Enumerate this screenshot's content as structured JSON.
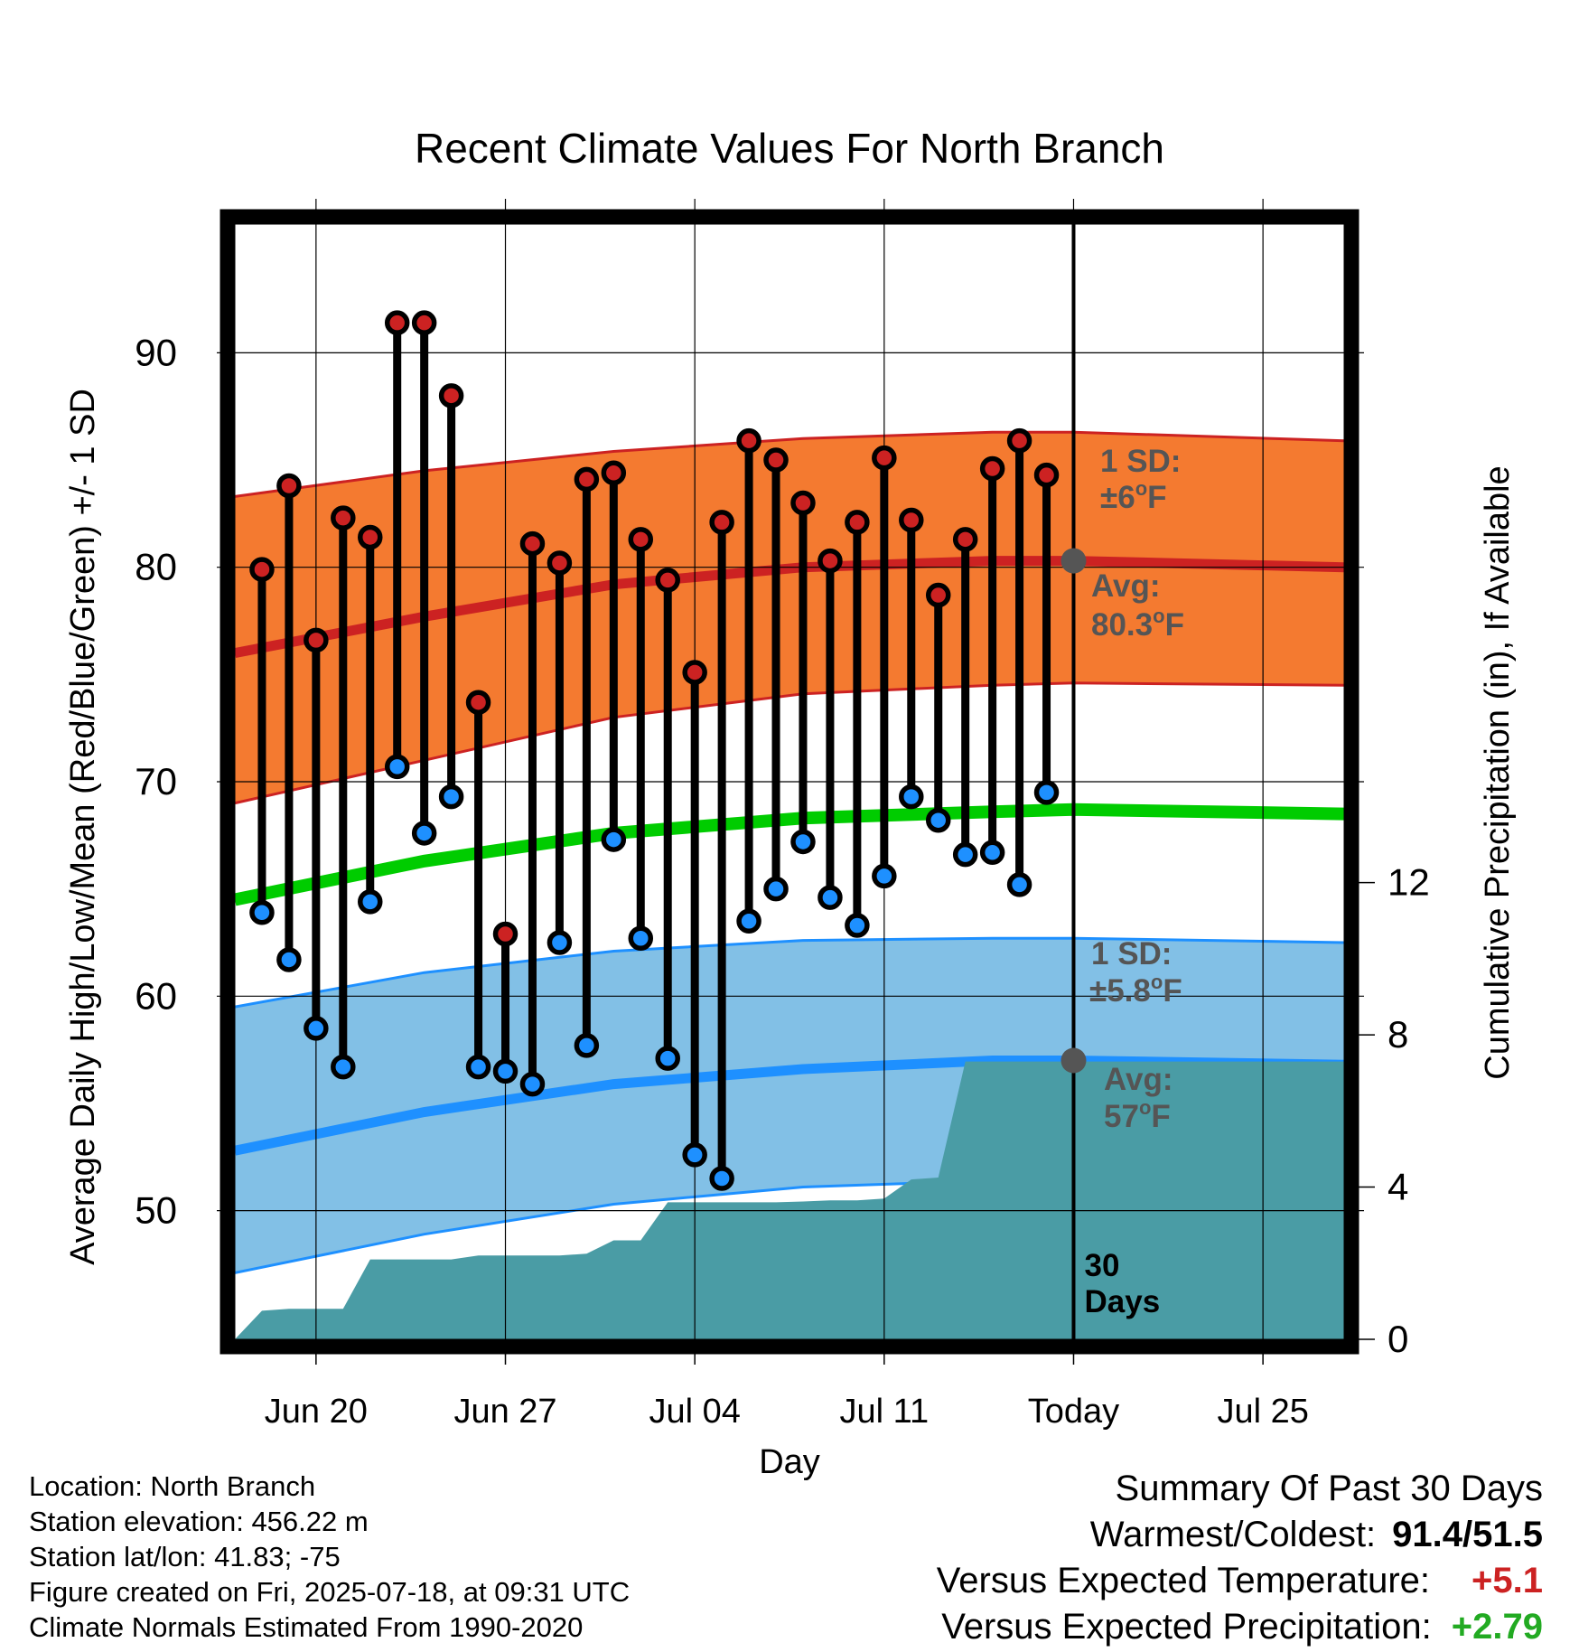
{
  "chart_data": {
    "type": "line",
    "title": "Recent Climate Values For North Branch",
    "xlabel": "Day",
    "ylabel": "Average Daily High/Low/Mean (Red/Blue/Green) +/- 1 SD",
    "y2label": "Cumulative Precipitation (in), If Available",
    "ylim": [
      44,
      96
    ],
    "y2lim": [
      0,
      29.3
    ],
    "xlim": [
      "2025-06-17",
      "2025-07-28"
    ],
    "xticks": [
      {
        "date": "2025-06-20",
        "label": "Jun 20"
      },
      {
        "date": "2025-06-27",
        "label": "Jun 27"
      },
      {
        "date": "2025-07-04",
        "label": "Jul 04"
      },
      {
        "date": "2025-07-11",
        "label": "Jul 11"
      },
      {
        "date": "2025-07-18",
        "label": "Today"
      },
      {
        "date": "2025-07-25",
        "label": "Jul 25"
      }
    ],
    "yticks": [
      50,
      60,
      70,
      80,
      90
    ],
    "y2ticks": [
      0,
      4,
      8,
      12
    ],
    "grid": true,
    "today": "2025-07-18",
    "today_label": [
      "30",
      "Days"
    ],
    "colors": {
      "high_band": "#f47a30",
      "high_mean": "#cc2222",
      "low_band": "#82c0e6",
      "low_mean": "#1e90ff",
      "mean": "#00cc00",
      "precip": "#4a9ca5",
      "high_point": "#cc2222",
      "low_point": "#1e90ff",
      "annotation": "#555555"
    },
    "normals": {
      "dates": [
        "2025-06-17",
        "2025-06-24",
        "2025-07-01",
        "2025-07-08",
        "2025-07-15",
        "2025-07-18",
        "2025-07-28"
      ],
      "high_mean": [
        76.0,
        77.7,
        79.2,
        80.0,
        80.3,
        80.3,
        80.0
      ],
      "high_sd_upper": [
        83.3,
        84.5,
        85.4,
        86.0,
        86.3,
        86.3,
        85.9
      ],
      "high_sd_lower": [
        69.0,
        71.0,
        73.0,
        74.1,
        74.5,
        74.6,
        74.5
      ],
      "mean": [
        64.5,
        66.3,
        67.6,
        68.3,
        68.6,
        68.7,
        68.5
      ],
      "low_mean": [
        52.8,
        54.6,
        55.9,
        56.6,
        57.0,
        57.0,
        56.8
      ],
      "low_sd_upper": [
        59.5,
        61.1,
        62.1,
        62.6,
        62.7,
        62.7,
        62.5
      ],
      "low_sd_lower": [
        47.1,
        48.9,
        50.3,
        51.1,
        51.4,
        51.5,
        51.3
      ]
    },
    "high_annotation": {
      "sd": "1 SD:",
      "sd_value": "±6",
      "avg": "Avg:",
      "avg_value": "80.3",
      "unit": "F"
    },
    "low_annotation": {
      "sd": "1 SD:",
      "sd_value": "±5.8",
      "avg": "Avg:",
      "avg_value": "57",
      "unit": "F"
    },
    "daily": {
      "dates": [
        "2025-06-18",
        "2025-06-19",
        "2025-06-20",
        "2025-06-21",
        "2025-06-22",
        "2025-06-23",
        "2025-06-24",
        "2025-06-25",
        "2025-06-26",
        "2025-06-27",
        "2025-06-28",
        "2025-06-29",
        "2025-06-30",
        "2025-07-01",
        "2025-07-02",
        "2025-07-03",
        "2025-07-04",
        "2025-07-05",
        "2025-07-06",
        "2025-07-07",
        "2025-07-08",
        "2025-07-09",
        "2025-07-10",
        "2025-07-11",
        "2025-07-12",
        "2025-07-13",
        "2025-07-14",
        "2025-07-15",
        "2025-07-16",
        "2025-07-17"
      ],
      "high": [
        79.9,
        83.8,
        76.6,
        82.3,
        81.4,
        91.4,
        91.4,
        88.0,
        73.7,
        62.9,
        81.1,
        80.2,
        84.1,
        84.4,
        81.3,
        79.4,
        75.1,
        82.1,
        85.9,
        85.0,
        83.0,
        80.3,
        82.1,
        85.1,
        82.2,
        78.7,
        81.3,
        84.6,
        85.9,
        84.3
      ],
      "low": [
        63.9,
        61.7,
        58.5,
        56.7,
        64.4,
        70.7,
        67.6,
        69.3,
        56.7,
        56.5,
        55.9,
        62.5,
        57.7,
        67.3,
        62.7,
        57.1,
        52.6,
        51.5,
        63.5,
        65.0,
        67.2,
        64.6,
        63.3,
        65.6,
        69.3,
        68.2,
        66.6,
        66.7,
        65.2,
        69.5
      ]
    },
    "precip": {
      "dates": [
        "2025-06-17",
        "2025-06-18",
        "2025-06-19",
        "2025-06-20",
        "2025-06-21",
        "2025-06-22",
        "2025-06-23",
        "2025-06-24",
        "2025-06-25",
        "2025-06-26",
        "2025-06-27",
        "2025-06-28",
        "2025-06-29",
        "2025-06-30",
        "2025-07-01",
        "2025-07-02",
        "2025-07-03",
        "2025-07-04",
        "2025-07-05",
        "2025-07-06",
        "2025-07-07",
        "2025-07-08",
        "2025-07-09",
        "2025-07-10",
        "2025-07-11",
        "2025-07-12",
        "2025-07-13",
        "2025-07-14",
        "2025-07-15",
        "2025-07-28"
      ],
      "values": [
        0.0,
        0.75,
        0.8,
        0.8,
        0.8,
        2.1,
        2.1,
        2.1,
        2.1,
        2.2,
        2.2,
        2.2,
        2.2,
        2.25,
        2.6,
        2.6,
        3.6,
        3.6,
        3.6,
        3.6,
        3.6,
        3.62,
        3.65,
        3.65,
        3.7,
        4.2,
        4.25,
        7.3,
        7.3,
        7.3
      ]
    }
  },
  "info": {
    "location": "Location: North Branch",
    "elevation": "Station elevation: 456.22 m",
    "latlon": "Station lat/lon: 41.83; -75",
    "created": "Figure created on Fri, 2025-07-18, at 09:31 UTC",
    "normals": "Climate Normals Estimated From 1990-2020"
  },
  "summary": {
    "title": "Summary Of Past 30 Days",
    "warm_cold_label": "Warmest/Coldest:",
    "warm_cold_value": "91.4/51.5",
    "temp_label": "Versus Expected Temperature:",
    "temp_value": "+5.1",
    "temp_color": "#cc2222",
    "precip_label": "Versus Expected Precipitation:",
    "precip_value": "+2.79",
    "precip_color": "#22aa22"
  }
}
